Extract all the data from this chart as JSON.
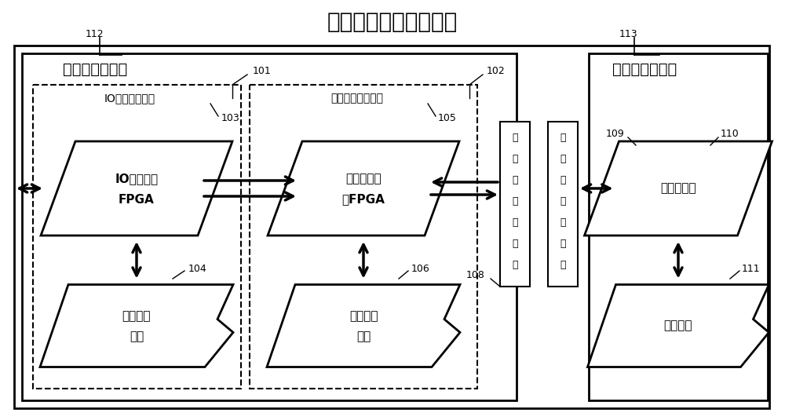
{
  "title": "通用星载计算机模拟器",
  "bg_color": "#ffffff",
  "label_112": "112",
  "label_113": "113",
  "label_101": "101",
  "label_102": "102",
  "label_103": "103",
  "label_104": "104",
  "label_105": "105",
  "label_106": "106",
  "label_108": "108",
  "label_109": "109",
  "label_110": "110",
  "label_111": "111",
  "text_left_board": "通用模拟器母板",
  "text_right_board": "专用模拟器子板",
  "text_io_sys": "IO接口模拟系统",
  "text_mem_sys": "存储资源扩展系统",
  "text_io_fpga_1": "IO接口模拟",
  "text_io_fpga_2": "FPGA",
  "text_mem_fpga_1": "存储资源扩",
  "text_mem_fpga_2": "展FPGA",
  "text_target": "目标处理器",
  "text_mem2_1": "第二存储",
  "text_mem2_2": "资源",
  "text_mem1_1": "第一存储",
  "text_mem1_2": "资源",
  "text_mem_comp": "存储部件",
  "text_conn1_chars": [
    "第",
    "一",
    "板",
    "间",
    "连",
    "接",
    "器"
  ],
  "text_conn2_chars": [
    "第",
    "二",
    "板",
    "间",
    "连",
    "接",
    "器"
  ]
}
